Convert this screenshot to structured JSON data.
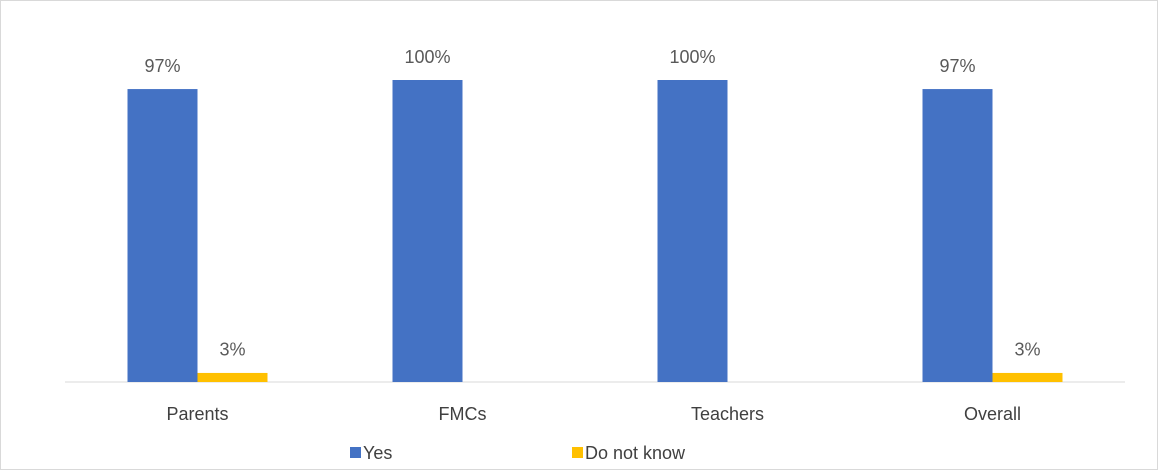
{
  "chart_data": {
    "type": "bar",
    "categories": [
      "Parents",
      "FMCs",
      "Teachers",
      "Overall"
    ],
    "series": [
      {
        "name": "Yes",
        "color": "#4472c4",
        "values": [
          97,
          100,
          100,
          97
        ],
        "value_labels": [
          "97%",
          "100%",
          "100%",
          "97%"
        ]
      },
      {
        "name": "Do not know",
        "color": "#ffc000",
        "values": [
          3,
          null,
          null,
          3
        ],
        "value_labels": [
          "3%",
          null,
          null,
          "3%"
        ]
      }
    ],
    "ylim": [
      0,
      100
    ],
    "grid": false,
    "legend": "bottom"
  }
}
